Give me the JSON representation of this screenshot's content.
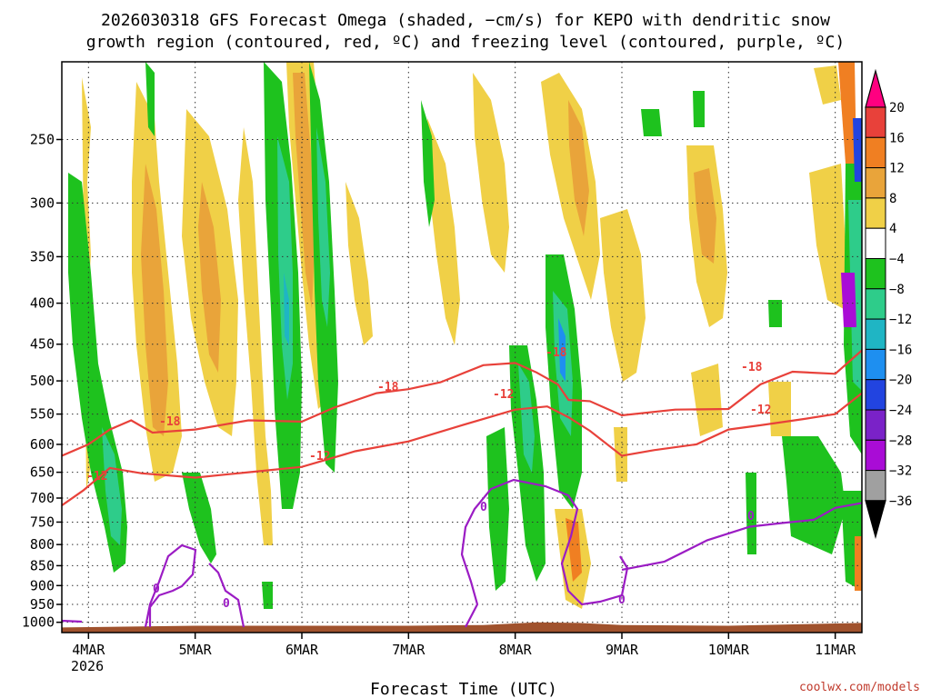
{
  "chart_data": {
    "type": "heatmap",
    "title_line1": "2026030318 GFS Forecast Omega (shaded, −cm/s) for KEPO with dendritic snow",
    "title_line2": "growth region (contoured, red, ºC) and freezing level (contoured, purple, ºC)",
    "xlabel": "Forecast Time (UTC)",
    "x_ticks": [
      "4MAR",
      "5MAR",
      "6MAR",
      "7MAR",
      "8MAR",
      "9MAR",
      "10MAR",
      "11MAR"
    ],
    "x_year": "2026",
    "x_range_days": [
      3.75,
      11.25
    ],
    "y_ticks": [
      250,
      300,
      350,
      400,
      450,
      500,
      550,
      600,
      650,
      700,
      750,
      800,
      850,
      900,
      950,
      1000
    ],
    "ylim_hpa": [
      1030,
      200
    ],
    "grid": true,
    "colorbar_labels": [
      "20",
      "16",
      "12",
      "8",
      "4",
      "−4",
      "−8",
      "−12",
      "−16",
      "−20",
      "−24",
      "−28",
      "−32",
      "−36"
    ],
    "colorbar_colors": [
      "#ff0080",
      "#e8413a",
      "#f07f22",
      "#e9a43a",
      "#f0d047",
      "#ffffff",
      "#1ec21e",
      "#2ecc8a",
      "#1fb5c4",
      "#1e8ff0",
      "#2244e0",
      "#7a22c8",
      "#a90cd6",
      "#a0a0a0",
      "#000000"
    ],
    "contour_labels": {
      "dgz_warm": "-12",
      "dgz_cold": "-18",
      "freezing": "0"
    },
    "dgz_minus12_line": [
      [
        3.75,
        715
      ],
      [
        3.95,
        685
      ],
      [
        4.2,
        642
      ],
      [
        4.5,
        652
      ],
      [
        5.0,
        660
      ],
      [
        5.5,
        650
      ],
      [
        6.0,
        640
      ],
      [
        6.5,
        612
      ],
      [
        7.0,
        595
      ],
      [
        7.5,
        568
      ],
      [
        8.0,
        543
      ],
      [
        8.3,
        538
      ],
      [
        8.5,
        555
      ],
      [
        8.7,
        577
      ],
      [
        9.0,
        620
      ],
      [
        9.3,
        610
      ],
      [
        9.7,
        600
      ],
      [
        10.0,
        575
      ],
      [
        10.3,
        568
      ],
      [
        10.7,
        558
      ],
      [
        11.0,
        550
      ],
      [
        11.25,
        518
      ]
    ],
    "dgz_minus18_line": [
      [
        3.75,
        620
      ],
      [
        4.0,
        600
      ],
      [
        4.2,
        575
      ],
      [
        4.4,
        560
      ],
      [
        4.6,
        580
      ],
      [
        5.0,
        575
      ],
      [
        5.5,
        560
      ],
      [
        6.0,
        562
      ],
      [
        6.3,
        540
      ],
      [
        6.7,
        518
      ],
      [
        7.0,
        512
      ],
      [
        7.3,
        502
      ],
      [
        7.7,
        478
      ],
      [
        8.0,
        475
      ],
      [
        8.2,
        488
      ],
      [
        8.4,
        505
      ],
      [
        8.5,
        528
      ],
      [
        8.7,
        530
      ],
      [
        9.0,
        552
      ],
      [
        9.5,
        543
      ],
      [
        10.0,
        542
      ],
      [
        10.3,
        505
      ],
      [
        10.6,
        487
      ],
      [
        11.0,
        490
      ],
      [
        11.25,
        458
      ]
    ],
    "freezing_line": [
      [
        9.0,
        860
      ],
      [
        9.4,
        840
      ],
      [
        9.8,
        790
      ],
      [
        10.2,
        760
      ],
      [
        10.5,
        752
      ],
      [
        10.8,
        745
      ],
      [
        11.0,
        720
      ],
      [
        11.25,
        710
      ]
    ],
    "brown_ground": [
      [
        3.75,
        1015
      ],
      [
        5.0,
        1010
      ],
      [
        6.0,
        1010
      ],
      [
        7.0,
        1010
      ],
      [
        7.7,
        1008
      ],
      [
        8.2,
        1000
      ],
      [
        8.6,
        1002
      ],
      [
        9.0,
        1008
      ],
      [
        10.0,
        1010
      ],
      [
        11.25,
        1002
      ]
    ],
    "ground_color": "#a0522d"
  },
  "credit": "coolwx.com/models"
}
